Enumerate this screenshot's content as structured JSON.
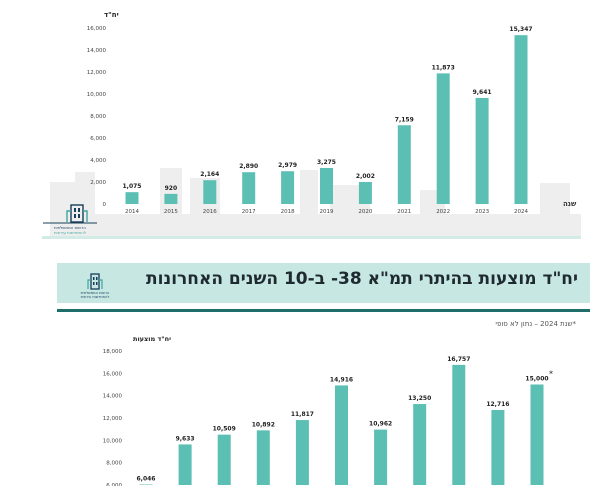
{
  "chart_data": [
    {
      "type": "bar",
      "ylabel": "יח\"ד",
      "xlabel": "שנה",
      "categories": [
        "2014",
        "2015",
        "2016",
        "2017",
        "2018",
        "2019",
        "2020",
        "2021",
        "2022",
        "2023",
        "2024"
      ],
      "values": [
        1075,
        920,
        2164,
        2890,
        2979,
        3275,
        2002,
        7159,
        11873,
        9641,
        15347
      ],
      "value_labels": [
        "1,075",
        "920",
        "2,164",
        "2,890",
        "2,979",
        "3,275",
        "2,002",
        "7,159",
        "11,873",
        "9,641",
        "15,347"
      ],
      "ylim": [
        0,
        16000
      ],
      "yticks": [
        "0",
        "2,000",
        "4,000",
        "6,000",
        "8,000",
        "10,000",
        "12,000",
        "14,000",
        "16,000"
      ],
      "color": "#5bbfb3",
      "grid": false
    },
    {
      "type": "bar",
      "ylabel": "יח\"ד מוצעות",
      "values": [
        6046,
        9633,
        10509,
        10892,
        11817,
        14916,
        10962,
        13250,
        16757,
        12716,
        15000
      ],
      "value_labels": [
        "6,046",
        "9,633",
        "10,509",
        "10,892",
        "11,817",
        "14,916",
        "10,962",
        "13,250",
        "16,757",
        "12,716",
        "15,000"
      ],
      "last_marker": "*",
      "ylim": [
        6000,
        18000
      ],
      "yticks": [
        "6,000",
        "8,000",
        "10,000",
        "12,000",
        "14,000",
        "16,000",
        "18,000"
      ],
      "color": "#5bbfb3",
      "grid": false
    }
  ],
  "banner": {
    "title": "יח\"ד מוצעות בהיתרי תמ\"א 38- ב-10 השנים האחרונות"
  },
  "note": "*שנת 2024 – נתון לא סופי",
  "logo": {
    "line1": "הרשות הממשלתית",
    "line2": "להתחדשות עירונית"
  },
  "colors": {
    "bar": "#5bbfb3",
    "banner_bg": "#c6e7e2",
    "banner_rule": "#1f6e6a",
    "logo": "#173d5a"
  }
}
